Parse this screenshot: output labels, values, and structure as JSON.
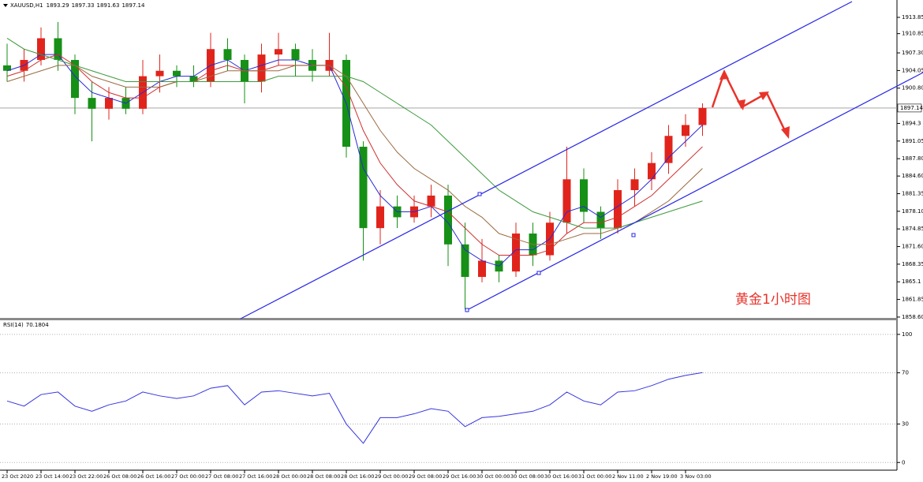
{
  "chart_data": [
    {
      "type": "candlestick",
      "title": "XAUUSD,H1",
      "ohlc_header": [
        1893.29,
        1897.33,
        1891.63,
        1897.14
      ],
      "categories": [
        "23 Oct 2020",
        null,
        "23 Oct 14:00",
        null,
        "23 Oct 22:00",
        null,
        "26 Oct 08:00",
        null,
        "26 Oct 16:00",
        null,
        "27 Oct 00:00",
        null,
        "27 Oct 08:00",
        null,
        "27 Oct 16:00",
        null,
        "28 Oct 00:00",
        null,
        "28 Oct 08:00",
        null,
        "28 Oct 16:00",
        null,
        "29 Oct 00:00",
        null,
        "29 Oct 08:00",
        null,
        "29 Oct 16:00",
        null,
        "30 Oct 00:00",
        null,
        "30 Oct 08:00",
        null,
        "30 Oct 16:00",
        null,
        "31 Oct 00:00",
        null,
        "2 Nov 11:00",
        null,
        "2 Nov 19:00",
        null,
        "3 Nov 03:00",
        null
      ],
      "open": [
        1905,
        1904,
        1906,
        1910,
        1906,
        1899,
        1897,
        1899,
        1897,
        1903,
        1904,
        1903,
        1902,
        1908,
        1906,
        1902,
        1907,
        1908,
        1906,
        1904,
        1906,
        1890,
        1875,
        1879,
        1877,
        1879,
        1881,
        1872,
        1866,
        1869,
        1867,
        1874,
        1870,
        1876,
        1884,
        1878,
        1875,
        1882,
        1884,
        1887,
        1892,
        1894
      ],
      "high": [
        1909,
        1908,
        1912,
        1913,
        1907,
        1902,
        1901,
        1901,
        1906,
        1907,
        1905,
        1905,
        1911,
        1910,
        1907,
        1909,
        1911,
        1909,
        1908,
        1911,
        1907,
        1891,
        1882,
        1881,
        1881,
        1883,
        1883,
        1876,
        1873,
        1870,
        1876,
        1876,
        1878,
        1890,
        1886,
        1879,
        1884,
        1886,
        1889,
        1894,
        1896,
        1898
      ],
      "low": [
        1902,
        1902,
        1905,
        1904,
        1896,
        1891,
        1895,
        1896,
        1896,
        1900,
        1901,
        1901,
        1901,
        1904,
        1898,
        1900,
        1905,
        1903,
        1902,
        1903,
        1888,
        1869,
        1872,
        1875,
        1876,
        1877,
        1868,
        1860,
        1865,
        1865,
        1866,
        1868,
        1869,
        1874,
        1876,
        1873,
        1874,
        1879,
        1882,
        1885,
        1890,
        1892
      ],
      "close": [
        1904,
        1906,
        1910,
        1906,
        1899,
        1897,
        1899,
        1897,
        1903,
        1904,
        1903,
        1902,
        1908,
        1906,
        1902,
        1907,
        1908,
        1906,
        1904,
        1906,
        1890,
        1875,
        1879,
        1877,
        1879,
        1881,
        1872,
        1866,
        1869,
        1867,
        1874,
        1870,
        1876,
        1884,
        1878,
        1875,
        1882,
        1884,
        1887,
        1892,
        1894,
        1897.14
      ],
      "up_color": "#e0241c",
      "down_color": "#169016",
      "series": [
        {
          "color": "#2a2ad8",
          "values": [
            1904,
            1905,
            1907,
            1907,
            1903,
            1900,
            1899,
            1898,
            1900,
            1902,
            1903,
            1903,
            1905,
            1906,
            1904,
            1905,
            1906,
            1906,
            1905,
            1905,
            1898,
            1886,
            1881,
            1878,
            1878,
            1879,
            1876,
            1871,
            1869,
            1868,
            1871,
            1871,
            1873,
            1878,
            1879,
            1877,
            1879,
            1881,
            1884,
            1888,
            1891,
            1894
          ]
        },
        {
          "color": "#d03030",
          "values": [
            1903,
            1904,
            1906,
            1907,
            1905,
            1902,
            1900,
            1899,
            1899,
            1901,
            1902,
            1902,
            1904,
            1905,
            1904,
            1904,
            1905,
            1905,
            1905,
            1905,
            1901,
            1893,
            1887,
            1883,
            1880,
            1879,
            1878,
            1875,
            1872,
            1870,
            1870,
            1870,
            1871,
            1874,
            1876,
            1876,
            1877,
            1879,
            1881,
            1884,
            1887,
            1890
          ]
        },
        {
          "color": "#9a6a40",
          "values": [
            1902,
            1903,
            1904,
            1905,
            1905,
            1903,
            1902,
            1901,
            1901,
            1901,
            1902,
            1902,
            1903,
            1904,
            1904,
            1904,
            1904,
            1905,
            1905,
            1905,
            1903,
            1898,
            1893,
            1889,
            1886,
            1884,
            1882,
            1879,
            1877,
            1874,
            1873,
            1872,
            1872,
            1873,
            1874,
            1874,
            1875,
            1876,
            1878,
            1880,
            1883,
            1886
          ]
        },
        {
          "color": "#3c9a3c",
          "values": [
            1910,
            1908,
            1907,
            1906,
            1905,
            1904,
            1903,
            1902,
            1902,
            1902,
            1902,
            1902,
            1902,
            1902,
            1902,
            1902,
            1903,
            1903,
            1903,
            1903,
            1903,
            1902,
            1900,
            1898,
            1896,
            1894,
            1891,
            1888,
            1885,
            1882,
            1880,
            1878,
            1877,
            1876,
            1875,
            1875,
            1875,
            1876,
            1877,
            1878,
            1879,
            1880
          ]
        }
      ],
      "last_price": 1897.14,
      "annotation": "黄金1小时图",
      "ylim": [
        1858.3,
        1917.05
      ],
      "yticks": [
        1913.85,
        1910.85,
        {
          "value": 1907.3,
          "label": "1907.30"
        },
        1904.05,
        {
          "value": 1900.8,
          "label": "1900.80"
        },
        1894.3,
        1891.05,
        {
          "value": 1887.8,
          "label": "1887.80"
        },
        {
          "value": 1884.6,
          "label": "1884.60"
        },
        1881.35,
        {
          "value": 1878.1,
          "label": "1878.10"
        },
        1874.85,
        {
          "value": 1871.6,
          "label": "1871.60"
        },
        1868.35,
        1865.1,
        1861.85,
        {
          "value": 1858.6,
          "label": "1858.60"
        }
      ]
    },
    {
      "type": "line",
      "title": "RSI(14)",
      "current": 70.1804,
      "series": [
        {
          "color": "#3434e0",
          "values": [
            48,
            44,
            53,
            55,
            44,
            40,
            45,
            48,
            55,
            52,
            50,
            52,
            58,
            60,
            45,
            55,
            56,
            54,
            52,
            54,
            30,
            15,
            35,
            35,
            38,
            42,
            40,
            28,
            35,
            36,
            38,
            40,
            45,
            55,
            48,
            45,
            55,
            56,
            60,
            65,
            68,
            70.18
          ]
        }
      ],
      "ylim": [
        -6,
        111
      ],
      "yticks": [
        0,
        30,
        70,
        100
      ],
      "grid": true
    }
  ]
}
